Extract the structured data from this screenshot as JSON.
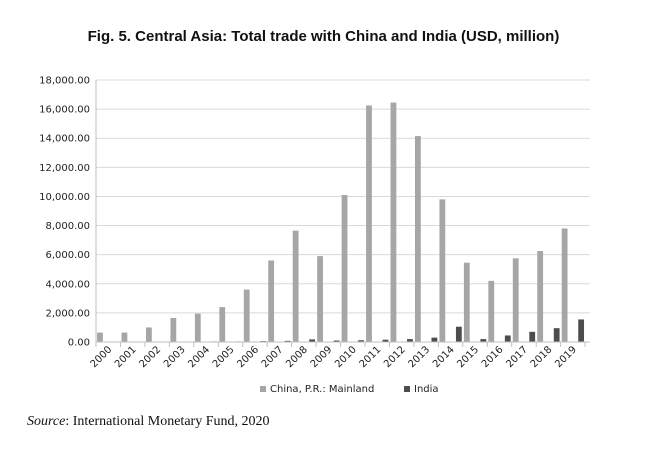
{
  "chart_data": {
    "type": "bar",
    "title": "Fig. 5. Central Asia: Total trade with China and India (USD, million)",
    "categories": [
      "2000",
      "2001",
      "2002",
      "2003",
      "2004",
      "2005",
      "2006",
      "2007",
      "2008",
      "2009",
      "2010",
      "2011",
      "2012",
      "2013",
      "2014",
      "2015",
      "2016",
      "2017",
      "2018",
      "2019"
    ],
    "series": [
      {
        "name": "China, P.R.: Mainland",
        "color": "#a6a6a6",
        "values": [
          650,
          650,
          1000,
          1650,
          1950,
          2400,
          3600,
          5600,
          7650,
          5900,
          10100,
          16250,
          16450,
          14150,
          9800,
          5450,
          4200,
          5750,
          6250,
          7800
        ]
      },
      {
        "name": "India",
        "color": "#4d4d4d",
        "values": [
          20,
          20,
          20,
          30,
          40,
          40,
          60,
          80,
          180,
          100,
          120,
          160,
          200,
          300,
          1050,
          200,
          450,
          700,
          950,
          1550
        ]
      }
    ],
    "ylim": [
      0,
      18000
    ],
    "yticks": [
      "0.00",
      "2,000.00",
      "4,000.00",
      "6,000.00",
      "8,000.00",
      "10,000.00",
      "12,000.00",
      "14,000.00",
      "16,000.00",
      "18,000.00"
    ],
    "ytick_values": [
      0,
      2000,
      4000,
      6000,
      8000,
      10000,
      12000,
      14000,
      16000,
      18000
    ],
    "grid": true,
    "legend_position": "bottom"
  },
  "source": {
    "label": "Source",
    "text": ": International Monetary Fund, 2020"
  }
}
